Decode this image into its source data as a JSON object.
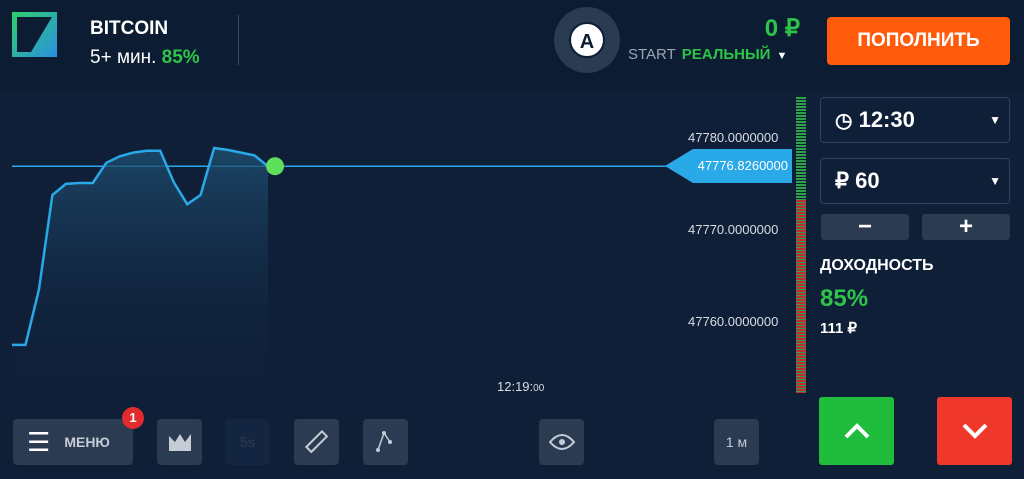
{
  "header": {
    "asset": "BITCOIN",
    "duration": "5+ мин.",
    "payout": "85%",
    "avatar_letter": "A",
    "balance": "0 ₽",
    "account_level": "START",
    "account_type": "РЕАЛЬНЫЙ",
    "deposit_label": "ПОПОЛНИТЬ"
  },
  "chart_data": {
    "type": "area",
    "y_ticks": [
      "47780.0000000",
      "47770.0000000",
      "47760.0000000"
    ],
    "ylim": [
      47755,
      47782
    ],
    "x_tick_main": "12:19:",
    "x_tick_sec": "00",
    "current_price": "47776.8260000",
    "current_value": 47776.826,
    "values": [
      47757.4,
      47757.4,
      47763.4,
      47773.7,
      47774.9,
      47775.0,
      47775.0,
      47777.2,
      47777.9,
      47778.3,
      47778.5,
      47778.5,
      47775.1,
      47772.7,
      47773.7,
      47778.8,
      47778.6,
      47778.3,
      47778.0,
      47776.8
    ],
    "colors": {
      "line": "#29a9e8",
      "marker": "#5ee05a",
      "up": "#2fa04a",
      "down": "#b9303a"
    }
  },
  "panel": {
    "time": "12:30",
    "amount": "₽ 60",
    "minus": "−",
    "plus": "+",
    "yield_label": "ДОХОДНОСТЬ",
    "yield_pct": "85%",
    "yield_amount": "111 ₽"
  },
  "toolbar": {
    "menu_label": "МЕНЮ",
    "menu_badge": "1",
    "indicator_label": "5s",
    "timeframe": "1 м"
  },
  "colors": {
    "accent": "#ff5b0a",
    "green": "#2ec44a",
    "up_button": "#1fbd3b",
    "down_button": "#f0382a"
  }
}
